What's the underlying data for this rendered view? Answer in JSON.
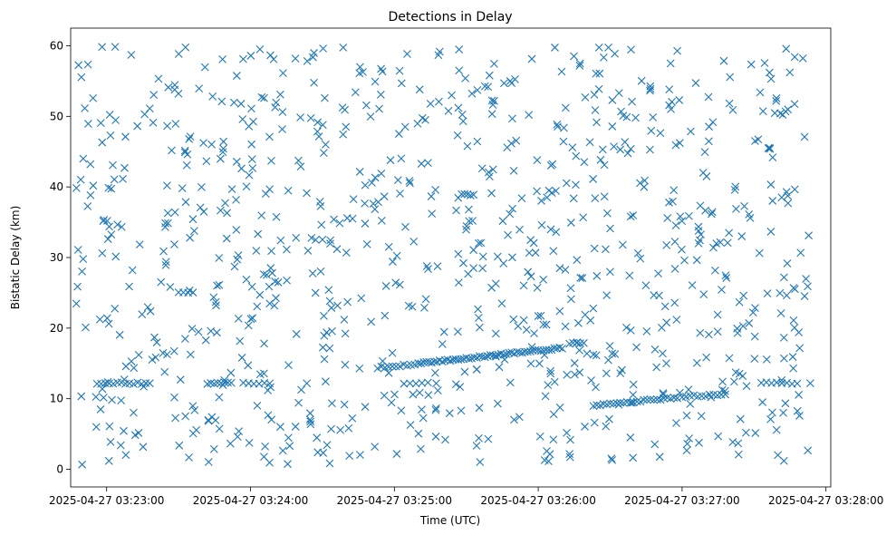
{
  "chart_data": {
    "type": "scatter",
    "title": "Detections in Delay",
    "xlabel": "Time (UTC)",
    "ylabel": "Bistatic Delay (km)",
    "marker": "x",
    "color": "#1f77b4",
    "grid": false,
    "legend": "none",
    "xlim": [
      "2025-04-27 03:22:45",
      "2025-04-27 03:28:02"
    ],
    "ylim": [
      -2.5,
      62.5
    ],
    "x_ticks": [
      "2025-04-27 03:23:00",
      "2025-04-27 03:24:00",
      "2025-04-27 03:25:00",
      "2025-04-27 03:26:00",
      "2025-04-27 03:27:00",
      "2025-04-27 03:28:00"
    ],
    "y_ticks": [
      0,
      10,
      20,
      30,
      40,
      50,
      60
    ],
    "tracks": [
      {
        "x": [
          "2025-04-27 03:22:56",
          "2025-04-27 03:23:18"
        ],
        "y": [
          12.2,
          12.2
        ],
        "count": 14
      },
      {
        "x": [
          "2025-04-27 03:23:42",
          "2025-04-27 03:23:52"
        ],
        "y": [
          12.2,
          12.2
        ],
        "count": 8
      },
      {
        "x": [
          "2025-04-27 03:24:53",
          "2025-04-27 03:25:10"
        ],
        "y": [
          14.4,
          14.9
        ],
        "count": 12
      },
      {
        "x": [
          "2025-04-27 03:25:10",
          "2025-04-27 03:26:10"
        ],
        "y": [
          15.0,
          17.2
        ],
        "count": 55
      },
      {
        "x": [
          "2025-04-27 03:26:23",
          "2025-04-27 03:26:58"
        ],
        "y": [
          9.0,
          10.2
        ],
        "count": 26
      },
      {
        "x": [
          "2025-04-27 03:27:00",
          "2025-04-27 03:27:18"
        ],
        "y": [
          10.3,
          10.6
        ],
        "count": 12
      },
      {
        "x": [
          "2025-04-27 03:27:33",
          "2025-04-27 03:27:48"
        ],
        "y": [
          12.2,
          12.2
        ],
        "count": 8
      },
      {
        "x": [
          "2025-04-27 03:26:13",
          "2025-04-27 03:26:19"
        ],
        "y": [
          17.8,
          17.8
        ],
        "count": 5
      },
      {
        "x": [
          "2025-04-27 03:23:57",
          "2025-04-27 03:24:08"
        ],
        "y": [
          12.2,
          12.2
        ],
        "count": 6
      },
      {
        "x": [
          "2025-04-27 03:25:28",
          "2025-04-27 03:25:33"
        ],
        "y": [
          38.9,
          38.9
        ],
        "count": 5
      },
      {
        "x": [
          "2025-04-27 03:25:04",
          "2025-04-27 03:25:14"
        ],
        "y": [
          12.2,
          12.2
        ],
        "count": 5
      },
      {
        "x": [
          "2025-04-27 03:23:30",
          "2025-04-27 03:23:36"
        ],
        "y": [
          25.0,
          25.0
        ],
        "count": 4
      }
    ],
    "scatter_noise": {
      "x_range": [
        "2025-04-27 03:22:47",
        "2025-04-27 03:27:54"
      ],
      "y_range": [
        0.5,
        60.0
      ],
      "count": 900
    }
  }
}
